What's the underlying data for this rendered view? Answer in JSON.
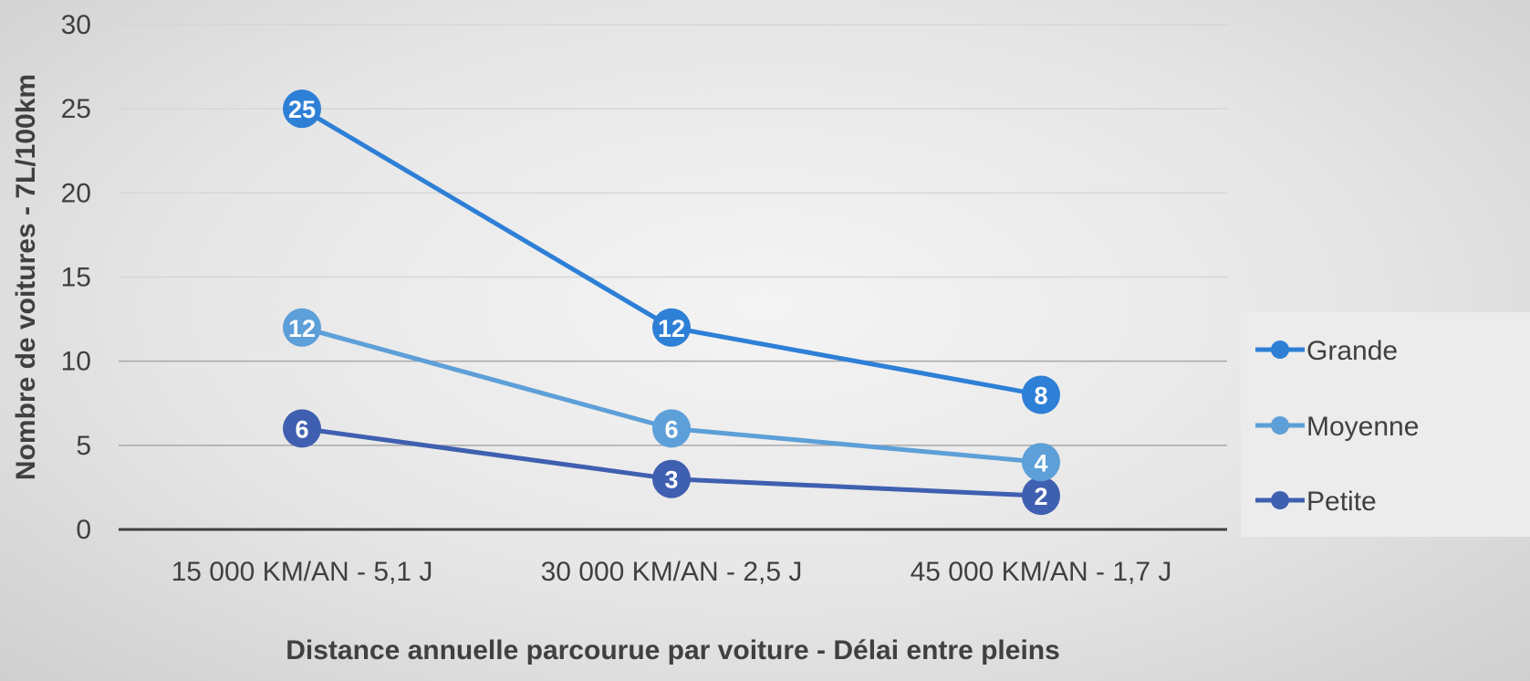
{
  "chart_data": {
    "type": "line",
    "categories": [
      "15 000 KM/AN - 5,1 J",
      "30 000 KM/AN - 2,5 J",
      "45 000 KM/AN - 1,7 J"
    ],
    "series": [
      {
        "name": "Grande",
        "values": [
          25,
          12,
          8
        ],
        "color": "#2e7fd6"
      },
      {
        "name": "Moyenne",
        "values": [
          12,
          6,
          4
        ],
        "color": "#5d9fd8"
      },
      {
        "name": "Petite",
        "values": [
          6,
          3,
          2
        ],
        "color": "#3f5fb0"
      }
    ],
    "xlabel": "Distance annuelle parcourue par voiture - Délai entre pleins",
    "ylabel": "Nombre de voitures - 7L/100km",
    "ylim": [
      0,
      30
    ],
    "yticks": [
      0,
      5,
      10,
      15,
      20,
      25,
      30
    ],
    "grid": true,
    "data_labels": true,
    "legend_position": "right"
  }
}
